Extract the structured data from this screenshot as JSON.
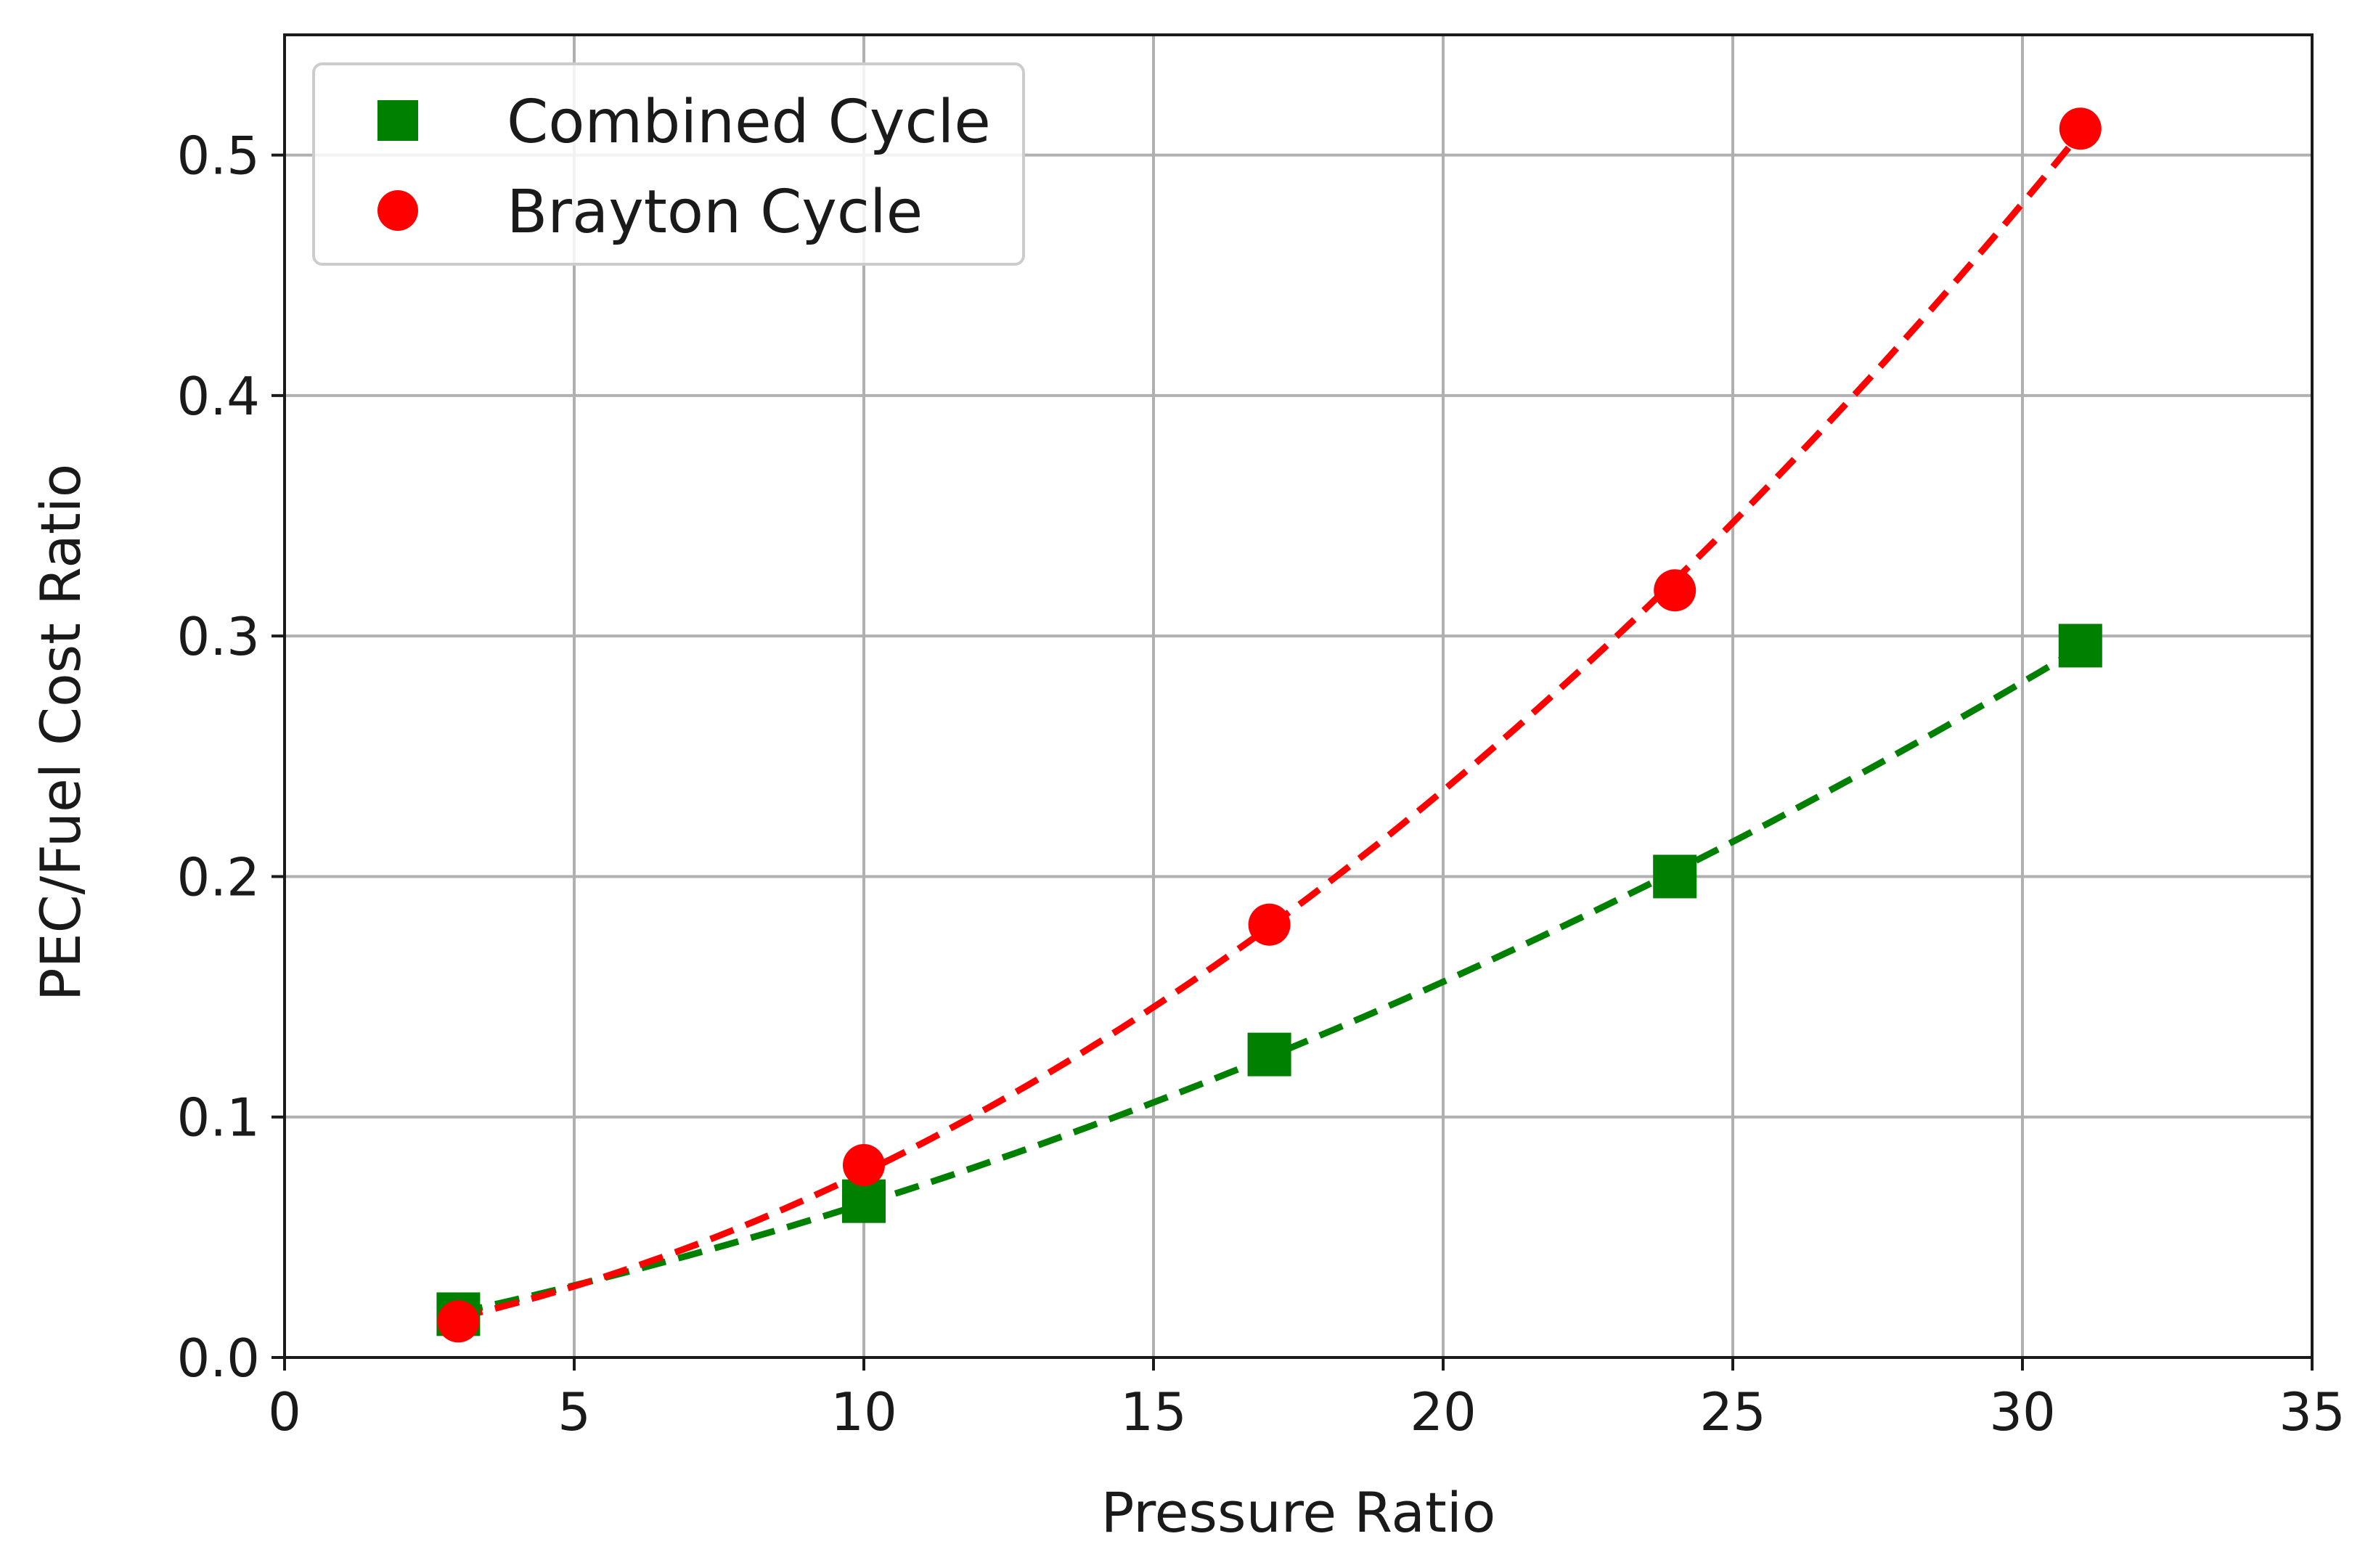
{
  "chart_data": {
    "type": "line",
    "title": "",
    "xlabel": "Pressure Ratio",
    "ylabel": "PEC/Fuel Cost Ratio",
    "xlim": [
      0,
      35
    ],
    "ylim": [
      0,
      0.55
    ],
    "xticks": [
      0,
      5,
      10,
      15,
      20,
      25,
      30,
      35
    ],
    "xtick_labels": [
      "0",
      "5",
      "10",
      "15",
      "20",
      "25",
      "30",
      "35"
    ],
    "yticks": [
      0,
      0.1,
      0.2,
      0.3,
      0.4,
      0.5
    ],
    "ytick_labels": [
      "0.0",
      "0.1",
      "0.2",
      "0.3",
      "0.4",
      "0.5"
    ],
    "grid": true,
    "legend_position": "top-left",
    "series": [
      {
        "name": "Combined Cycle",
        "color": "#008000",
        "marker": "square",
        "line_style": "dashed",
        "x": [
          3,
          10,
          17,
          24,
          31
        ],
        "values": [
          0.018,
          0.065,
          0.126,
          0.2,
          0.296
        ]
      },
      {
        "name": "Brayton Cycle",
        "color": "#ff0000",
        "marker": "circle",
        "line_style": "dashed",
        "x": [
          3,
          10,
          17,
          24,
          31
        ],
        "values": [
          0.015,
          0.08,
          0.18,
          0.319,
          0.511
        ]
      }
    ]
  }
}
